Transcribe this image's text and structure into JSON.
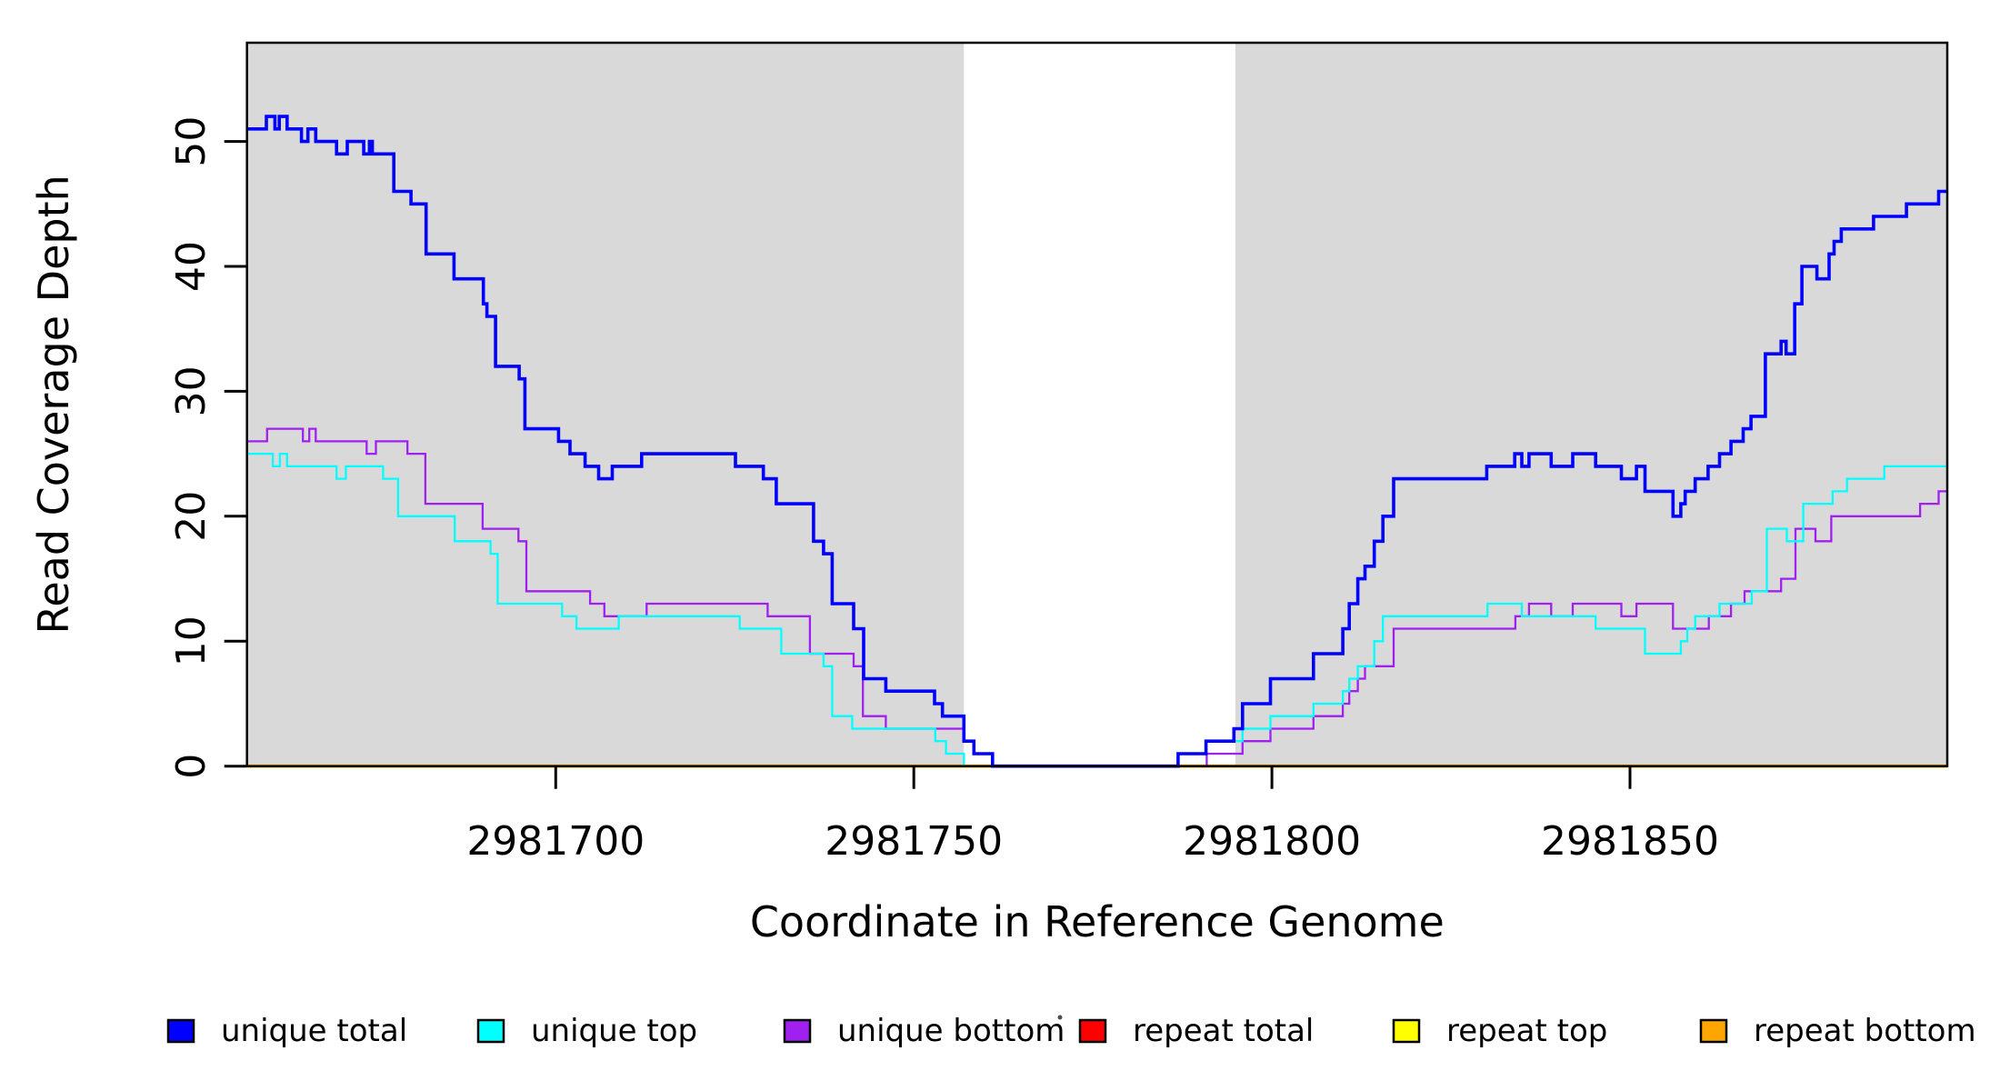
{
  "x_axis": {
    "title": "Coordinate in Reference Genome",
    "tick_labels": [
      "2981700",
      "2981750",
      "2981800",
      "2981850"
    ],
    "tick_values": [
      2981700,
      2981750,
      2981800,
      2981850
    ]
  },
  "y_axis": {
    "title": "Read Coverage Depth",
    "tick_labels": [
      "0",
      "10",
      "20",
      "30",
      "40",
      "50"
    ],
    "tick_values": [
      0,
      10,
      20,
      30,
      40,
      50
    ]
  },
  "plot": {
    "shade_color": "#d9d9d9",
    "shaded_regions_bp": [
      [
        2981656.9,
        2981757.0
      ],
      [
        2981794.9,
        2981894.3
      ]
    ],
    "white_gap_bp": [
      2981757.0,
      2981794.9
    ]
  },
  "legend": {
    "items": [
      {
        "label": "unique total",
        "color": "#0000ff"
      },
      {
        "label": "unique top",
        "color": "#00ffff"
      },
      {
        "label": "unique bottom",
        "color": "#a020f0"
      },
      {
        "label": "repeat total",
        "color": "#ff0000"
      },
      {
        "label": "repeat top",
        "color": "#ffff00"
      },
      {
        "label": "repeat bottom",
        "color": "#ffa500"
      }
    ]
  },
  "chart_data": {
    "type": "line",
    "step": true,
    "title": "",
    "xlabel": "Coordinate in Reference Genome",
    "ylabel": "Read Coverage Depth",
    "xlim": [
      2981656.9,
      2981894.3
    ],
    "ylim": [
      0,
      57.9
    ],
    "x_ticks": [
      2981700,
      2981750,
      2981800,
      2981850
    ],
    "y_ticks": [
      0,
      10,
      20,
      30,
      40,
      50
    ],
    "grid": false,
    "legend_position": "bottom",
    "series": [
      {
        "name": "unique total",
        "color": "#0000ff",
        "width": 3.6,
        "points": [
          [
            2981657,
            51
          ],
          [
            2981659.6,
            52
          ],
          [
            2981660.8,
            51
          ],
          [
            2981661.4,
            52
          ],
          [
            2981662.5,
            51
          ],
          [
            2981664.5,
            50
          ],
          [
            2981665.4,
            51
          ],
          [
            2981666.5,
            50
          ],
          [
            2981669.4,
            49
          ],
          [
            2981670.9,
            50
          ],
          [
            2981673.2,
            49
          ],
          [
            2981674,
            50
          ],
          [
            2981674.4,
            49
          ],
          [
            2981677.4,
            46
          ],
          [
            2981679.8,
            45
          ],
          [
            2981681.9,
            41
          ],
          [
            2981685.8,
            39
          ],
          [
            2981689.9,
            37
          ],
          [
            2981690.4,
            36
          ],
          [
            2981691.6,
            32
          ],
          [
            2981694.9,
            31
          ],
          [
            2981695.7,
            27
          ],
          [
            2981700.4,
            26
          ],
          [
            2981702,
            25
          ],
          [
            2981704.1,
            24
          ],
          [
            2981706,
            23
          ],
          [
            2981707.9,
            24
          ],
          [
            2981712,
            25
          ],
          [
            2981725.1,
            24
          ],
          [
            2981729,
            23
          ],
          [
            2981730.8,
            21
          ],
          [
            2981736,
            18
          ],
          [
            2981737.4,
            17
          ],
          [
            2981738.6,
            13
          ],
          [
            2981741.6,
            11
          ],
          [
            2981743,
            7
          ],
          [
            2981746.1,
            6
          ],
          [
            2981752.9,
            5
          ],
          [
            2981754,
            4
          ],
          [
            2981757,
            2
          ],
          [
            2981758.4,
            1
          ],
          [
            2981761,
            0
          ],
          [
            2981786.9,
            1
          ],
          [
            2981790.8,
            2
          ],
          [
            2981794.7,
            3
          ],
          [
            2981795.9,
            5
          ],
          [
            2981799.8,
            7
          ],
          [
            2981805.8,
            9
          ],
          [
            2981809.9,
            11
          ],
          [
            2981810.8,
            13
          ],
          [
            2981812,
            15
          ],
          [
            2981813,
            16
          ],
          [
            2981814.3,
            18
          ],
          [
            2981815.5,
            20
          ],
          [
            2981817,
            23
          ],
          [
            2981830,
            24
          ],
          [
            2981833.9,
            25
          ],
          [
            2981834.9,
            24
          ],
          [
            2981835.9,
            25
          ],
          [
            2981839,
            24
          ],
          [
            2981842,
            25
          ],
          [
            2981845.2,
            24
          ],
          [
            2981848.8,
            23
          ],
          [
            2981850.9,
            24
          ],
          [
            2981852.1,
            22
          ],
          [
            2981856,
            20
          ],
          [
            2981857.1,
            21
          ],
          [
            2981857.7,
            22
          ],
          [
            2981859.1,
            23
          ],
          [
            2981860.9,
            24
          ],
          [
            2981862.5,
            25
          ],
          [
            2981864.1,
            26
          ],
          [
            2981865.8,
            27
          ],
          [
            2981866.9,
            28
          ],
          [
            2981868.9,
            33
          ],
          [
            2981871.1,
            34
          ],
          [
            2981871.8,
            33
          ],
          [
            2981873,
            37
          ],
          [
            2981874,
            40
          ],
          [
            2981876.1,
            39
          ],
          [
            2981877.8,
            41
          ],
          [
            2981878.5,
            42
          ],
          [
            2981879.5,
            43
          ],
          [
            2981884,
            44
          ],
          [
            2981888.6,
            45
          ],
          [
            2981893.1,
            46
          ]
        ]
      },
      {
        "name": "unique top",
        "color": "#00ffff",
        "width": 2.3,
        "points": [
          [
            2981657,
            25
          ],
          [
            2981660.5,
            24
          ],
          [
            2981661.5,
            25
          ],
          [
            2981662.5,
            24
          ],
          [
            2981669.4,
            23
          ],
          [
            2981670.7,
            24
          ],
          [
            2981675.9,
            23
          ],
          [
            2981678,
            20
          ],
          [
            2981685.9,
            18
          ],
          [
            2981690.9,
            17
          ],
          [
            2981691.9,
            13
          ],
          [
            2981700.9,
            12
          ],
          [
            2981702.9,
            11
          ],
          [
            2981708.8,
            12
          ],
          [
            2981725.7,
            11
          ],
          [
            2981731.5,
            9
          ],
          [
            2981737.4,
            8
          ],
          [
            2981738.6,
            4
          ],
          [
            2981741.4,
            3
          ],
          [
            2981753,
            2
          ],
          [
            2981754.5,
            1
          ],
          [
            2981757,
            0
          ],
          [
            2981786.9,
            1
          ],
          [
            2981790.8,
            2
          ],
          [
            2981795.9,
            3
          ],
          [
            2981799.8,
            4
          ],
          [
            2981805.8,
            5
          ],
          [
            2981809.9,
            6
          ],
          [
            2981810.8,
            7
          ],
          [
            2981812,
            8
          ],
          [
            2981814.3,
            10
          ],
          [
            2981815.5,
            12
          ],
          [
            2981830.1,
            13
          ],
          [
            2981834.9,
            12
          ],
          [
            2981845.2,
            11
          ],
          [
            2981852.1,
            9
          ],
          [
            2981857.1,
            10
          ],
          [
            2981858,
            11
          ],
          [
            2981859.1,
            12
          ],
          [
            2981862.5,
            13
          ],
          [
            2981867,
            14
          ],
          [
            2981869.1,
            19
          ],
          [
            2981871.9,
            18
          ],
          [
            2981874.2,
            21
          ],
          [
            2981878.3,
            22
          ],
          [
            2981880.3,
            23
          ],
          [
            2981885.5,
            24
          ]
        ]
      },
      {
        "name": "unique bottom",
        "color": "#a020f0",
        "width": 2.3,
        "points": [
          [
            2981657,
            26
          ],
          [
            2981659.7,
            27
          ],
          [
            2981664.7,
            26
          ],
          [
            2981665.6,
            27
          ],
          [
            2981666.5,
            26
          ],
          [
            2981673.6,
            25
          ],
          [
            2981674.9,
            26
          ],
          [
            2981679.3,
            25
          ],
          [
            2981681.8,
            21
          ],
          [
            2981689.8,
            19
          ],
          [
            2981694.8,
            18
          ],
          [
            2981695.9,
            14
          ],
          [
            2981704.8,
            13
          ],
          [
            2981706.8,
            12
          ],
          [
            2981712.7,
            13
          ],
          [
            2981729.6,
            12
          ],
          [
            2981735.5,
            9
          ],
          [
            2981741.6,
            8
          ],
          [
            2981742.9,
            4
          ],
          [
            2981746.1,
            3
          ],
          [
            2981757,
            2
          ],
          [
            2981758.4,
            1
          ],
          [
            2981761,
            0
          ],
          [
            2981790.9,
            1
          ],
          [
            2981795.9,
            2
          ],
          [
            2981799.8,
            3
          ],
          [
            2981805.8,
            4
          ],
          [
            2981809.9,
            5
          ],
          [
            2981810.8,
            6
          ],
          [
            2981812,
            7
          ],
          [
            2981813,
            8
          ],
          [
            2981817,
            11
          ],
          [
            2981834,
            12
          ],
          [
            2981835.9,
            13
          ],
          [
            2981839,
            12
          ],
          [
            2981842,
            13
          ],
          [
            2981848.8,
            12
          ],
          [
            2981850.9,
            13
          ],
          [
            2981856,
            11
          ],
          [
            2981861,
            12
          ],
          [
            2981864.1,
            13
          ],
          [
            2981866,
            14
          ],
          [
            2981871.1,
            15
          ],
          [
            2981873.1,
            19
          ],
          [
            2981875.9,
            18
          ],
          [
            2981878.1,
            20
          ],
          [
            2981890.5,
            21
          ],
          [
            2981893.1,
            22
          ]
        ]
      },
      {
        "name": "repeat total",
        "color": "#ff0000",
        "width": 2.3,
        "points": [
          [
            2981657,
            0
          ]
        ]
      },
      {
        "name": "repeat top",
        "color": "#ffff00",
        "width": 2.3,
        "points": [
          [
            2981657,
            0
          ]
        ]
      },
      {
        "name": "repeat bottom",
        "color": "#ffa500",
        "width": 3.6,
        "points": [
          [
            2981657,
            0
          ]
        ]
      }
    ]
  }
}
